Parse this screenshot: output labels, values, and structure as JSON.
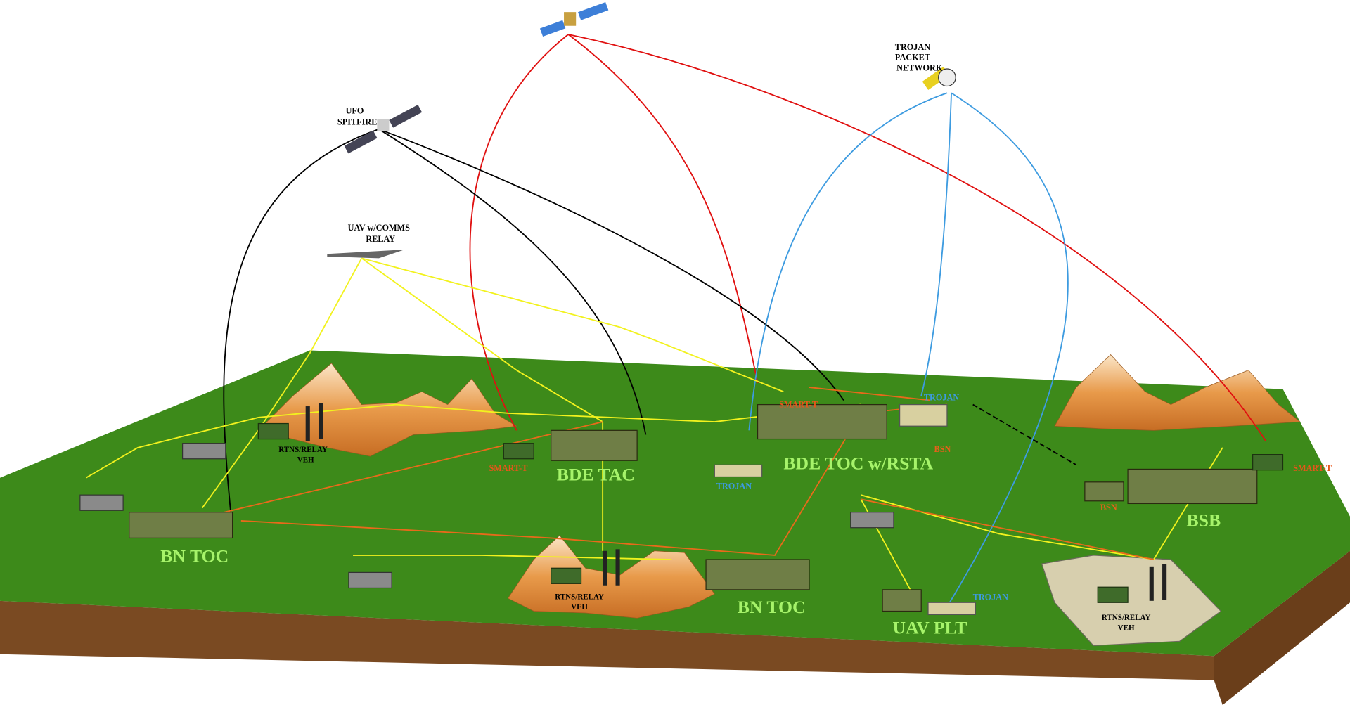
{
  "space": {
    "trojan_packet_network": [
      "TROJAN",
      "PACKET",
      "NETWORK"
    ],
    "ufo_spitfire": [
      "UFO",
      "SPITFIRE"
    ],
    "uav": [
      "UAV w/COMMS",
      "RELAY"
    ]
  },
  "sites": {
    "rtns_relay": [
      "RTNS/RELAY",
      "VEH"
    ],
    "smart_t": "SMART-T",
    "bde_tac": "BDE TAC",
    "bde_toc": "BDE TOC w/RSTA",
    "trojan": "TROJAN",
    "bsn": "BSN",
    "bn_toc": "BN TOC",
    "uav_plt": "UAV PLT",
    "bsb": "BSB"
  }
}
